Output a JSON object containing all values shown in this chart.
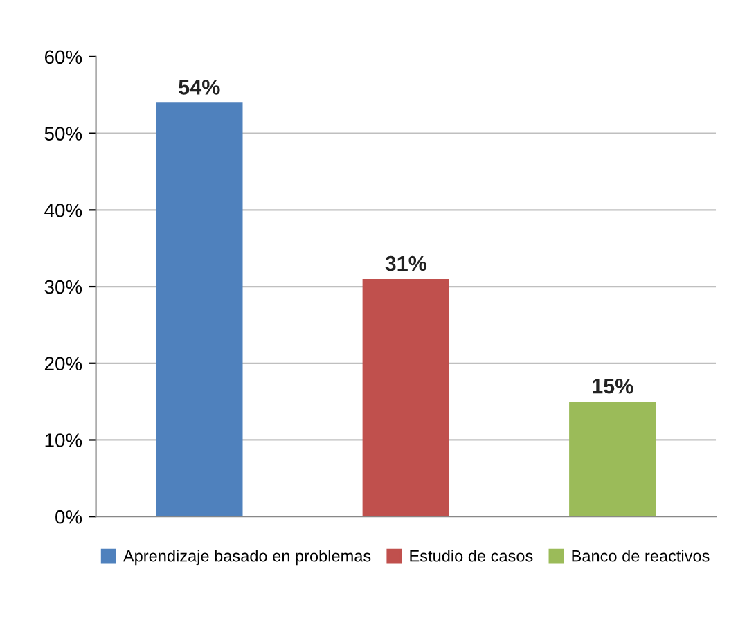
{
  "chart_data": {
    "type": "bar",
    "categories": [
      null,
      null,
      null
    ],
    "series": [
      {
        "name": "Aprendizaje basado en problemas",
        "color": "#4f81bd",
        "values": [
          54,
          null,
          null
        ],
        "value_labels": [
          "54%",
          null,
          null
        ]
      },
      {
        "name": "Estudio de casos",
        "color": "#c0504d",
        "values": [
          null,
          31,
          null
        ],
        "value_labels": [
          null,
          "31%",
          null
        ]
      },
      {
        "name": "Banco de reactivos",
        "color": "#9bbb59",
        "values": [
          null,
          null,
          15
        ],
        "value_labels": [
          null,
          null,
          "15%"
        ]
      }
    ],
    "ylim": [
      0,
      60
    ],
    "yticks": [
      {
        "value": 0,
        "label": "0%"
      },
      {
        "value": 10,
        "label": "10%"
      },
      {
        "value": 20,
        "label": "20%"
      },
      {
        "value": 30,
        "label": "30%"
      },
      {
        "value": 40,
        "label": "40%"
      },
      {
        "value": 50,
        "label": "50%"
      },
      {
        "value": 60,
        "label": "60%"
      }
    ],
    "grid": "y",
    "legend": "bottom"
  }
}
